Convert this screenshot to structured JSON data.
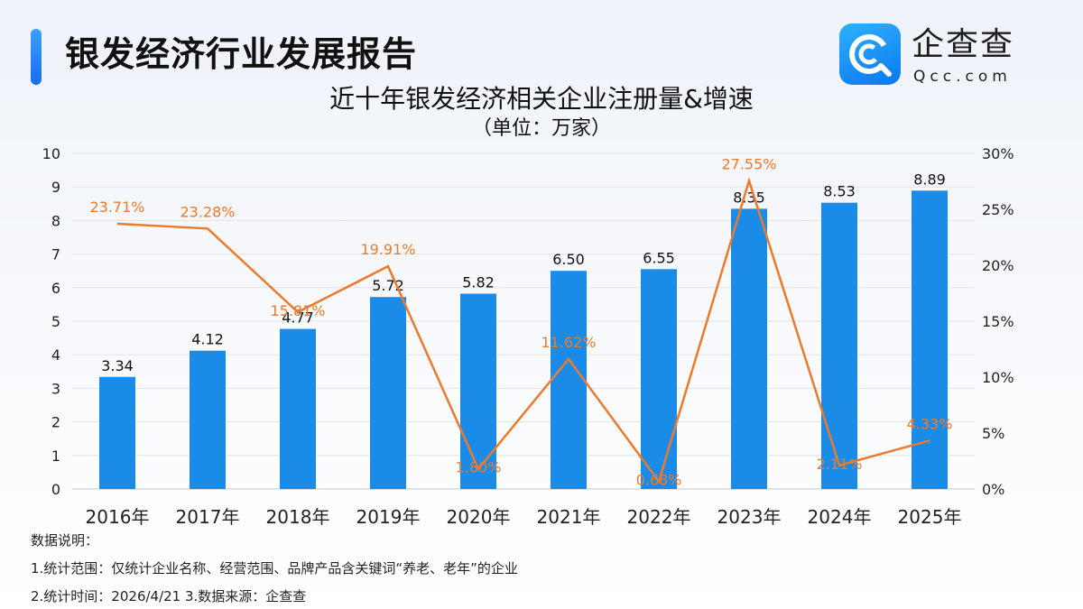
{
  "header": {
    "title": "银发经济行业发展报告"
  },
  "logo": {
    "name": "企查查",
    "domain": "Qcc.com",
    "icon": "qcc-logo-icon",
    "color": "#1a8cf5"
  },
  "chart_data": {
    "type": "bar",
    "title": "近十年银发经济相关企业注册量&增速",
    "subtitle": "（单位：万家）",
    "categories": [
      "2016年",
      "2017年",
      "2018年",
      "2019年",
      "2020年",
      "2021年",
      "2022年",
      "2023年",
      "2024年",
      "2025年"
    ],
    "series": [
      {
        "type": "bar",
        "axis": "left",
        "color": "#1a8ce8",
        "values": [
          3.34,
          4.12,
          4.77,
          5.72,
          5.82,
          6.5,
          6.55,
          8.35,
          8.53,
          8.89
        ],
        "labels": [
          "3.34",
          "4.12",
          "4.77",
          "5.72",
          "5.82",
          "6.50",
          "6.55",
          "8.35",
          "8.53",
          "8.89"
        ]
      },
      {
        "type": "line",
        "axis": "right",
        "color": "#ec7a2c",
        "values": [
          23.71,
          23.28,
          15.81,
          19.91,
          1.8,
          11.62,
          0.68,
          27.55,
          2.11,
          4.33
        ],
        "labels": [
          "23.71%",
          "23.28%",
          "15.81%",
          "19.91%",
          "1.80%",
          "11.62%",
          "0.68%",
          "27.55%",
          "2.11%",
          "4.33%"
        ]
      }
    ],
    "y_left": {
      "min": 0,
      "max": 10,
      "ticks": [
        "0",
        "1",
        "2",
        "3",
        "4",
        "5",
        "6",
        "7",
        "8",
        "9",
        "10"
      ]
    },
    "y_right": {
      "min": 0,
      "max": 30,
      "ticks": [
        "0%",
        "5%",
        "10%",
        "15%",
        "20%",
        "25%",
        "30%"
      ]
    },
    "grid": true
  },
  "notes": {
    "heading": "数据说明：",
    "line1": "1.统计范围：仅统计企业名称、经营范围、品牌产品含关键词“养老、老年”的企业",
    "line2": "2.统计时间：2026/4/21 3.数据来源：企查查"
  }
}
